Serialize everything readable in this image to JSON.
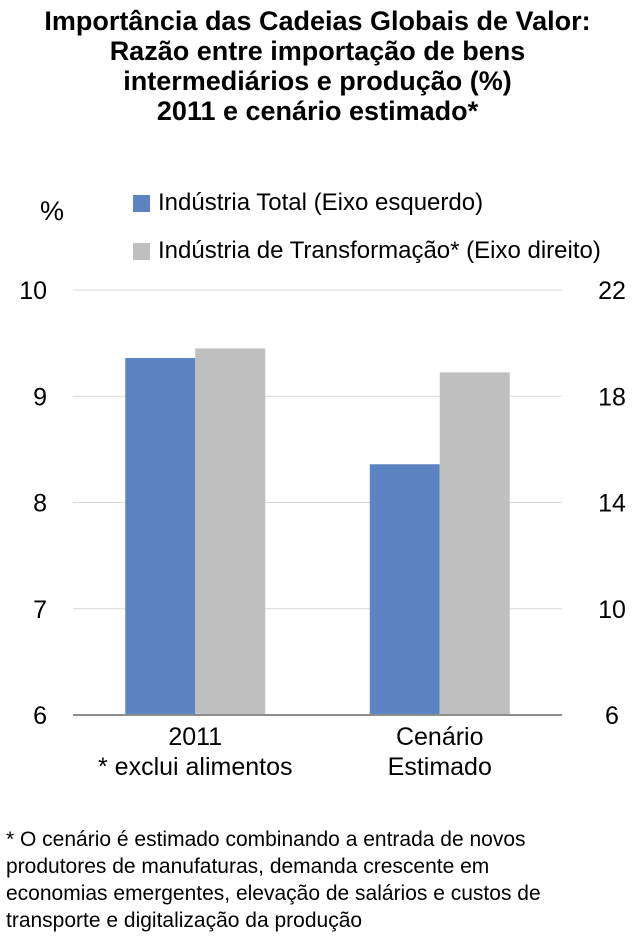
{
  "title_lines": [
    "Importância das Cadeias Globais de Valor:",
    "Razão entre importação de bens",
    "intermediários e produção (%)",
    "2011 e cenário estimado*"
  ],
  "unit_label": "%",
  "chart_data": {
    "type": "bar",
    "categories": [
      [
        "2011",
        "* exclui alimentos"
      ],
      [
        "Cenário",
        "Estimado"
      ]
    ],
    "series": [
      {
        "name": "Indústria Total (Eixo esquerdo)",
        "axis": "left",
        "color": "#5b84c0",
        "values": [
          9.36,
          8.36
        ]
      },
      {
        "name": "Indústria de Transformação* (Eixo direito)",
        "axis": "right",
        "color": "#bfbfbf",
        "values": [
          19.8,
          18.9
        ]
      }
    ],
    "y_left": {
      "min": 6,
      "max": 10,
      "ticks": [
        "6",
        "7",
        "8",
        "9",
        "10"
      ]
    },
    "y_right": {
      "min": 6,
      "max": 22,
      "ticks": [
        "6",
        "10",
        "14",
        "18",
        "22"
      ]
    },
    "grid": true,
    "legend_position": "top"
  },
  "footnote_lines": [
    "* O cenário é estimado combinando a entrada de novos",
    "produtores de manufaturas, demanda crescente em",
    "economias emergentes, elevação de salários e custos de",
    "transporte e digitalização da produção"
  ]
}
